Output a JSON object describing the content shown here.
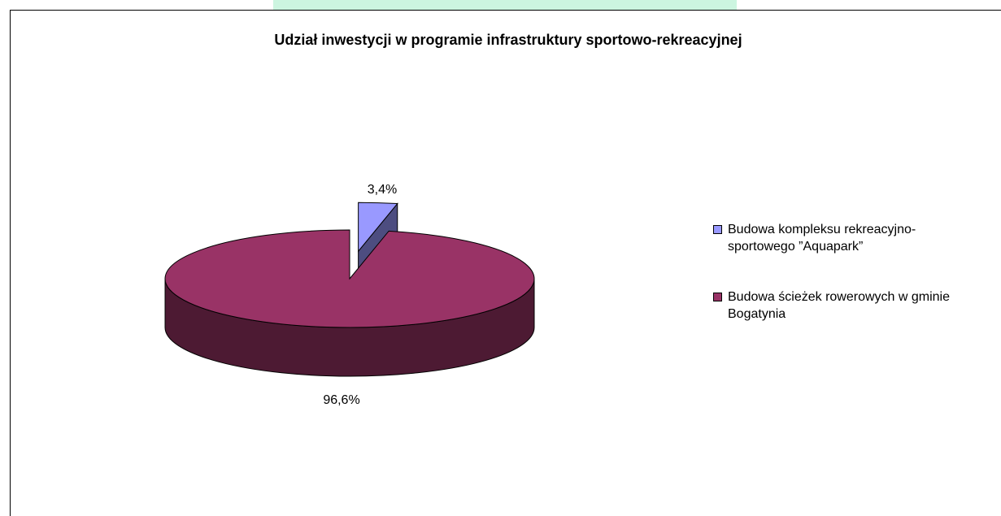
{
  "chart_data": {
    "type": "pie",
    "title": "Udział inwestycji w programie infrastruktury sportowo-rekreacyjnej",
    "categories": [
      "Budowa kompleksu rekreacyjno-sportowego ”Aquapark”",
      "Budowa ścieżek rowerowych w gminie Bogatynia"
    ],
    "values": [
      3.4,
      96.6
    ],
    "value_labels": [
      "3,4%",
      "96,6%"
    ],
    "colors": [
      "#9999ff",
      "#993366"
    ],
    "legend": "right"
  }
}
